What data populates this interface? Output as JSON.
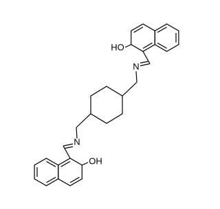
{
  "atoms": [
    {
      "label": "HO"
    },
    {
      "label": "N"
    },
    {
      "label": "N"
    },
    {
      "label": "OH"
    }
  ]
}
